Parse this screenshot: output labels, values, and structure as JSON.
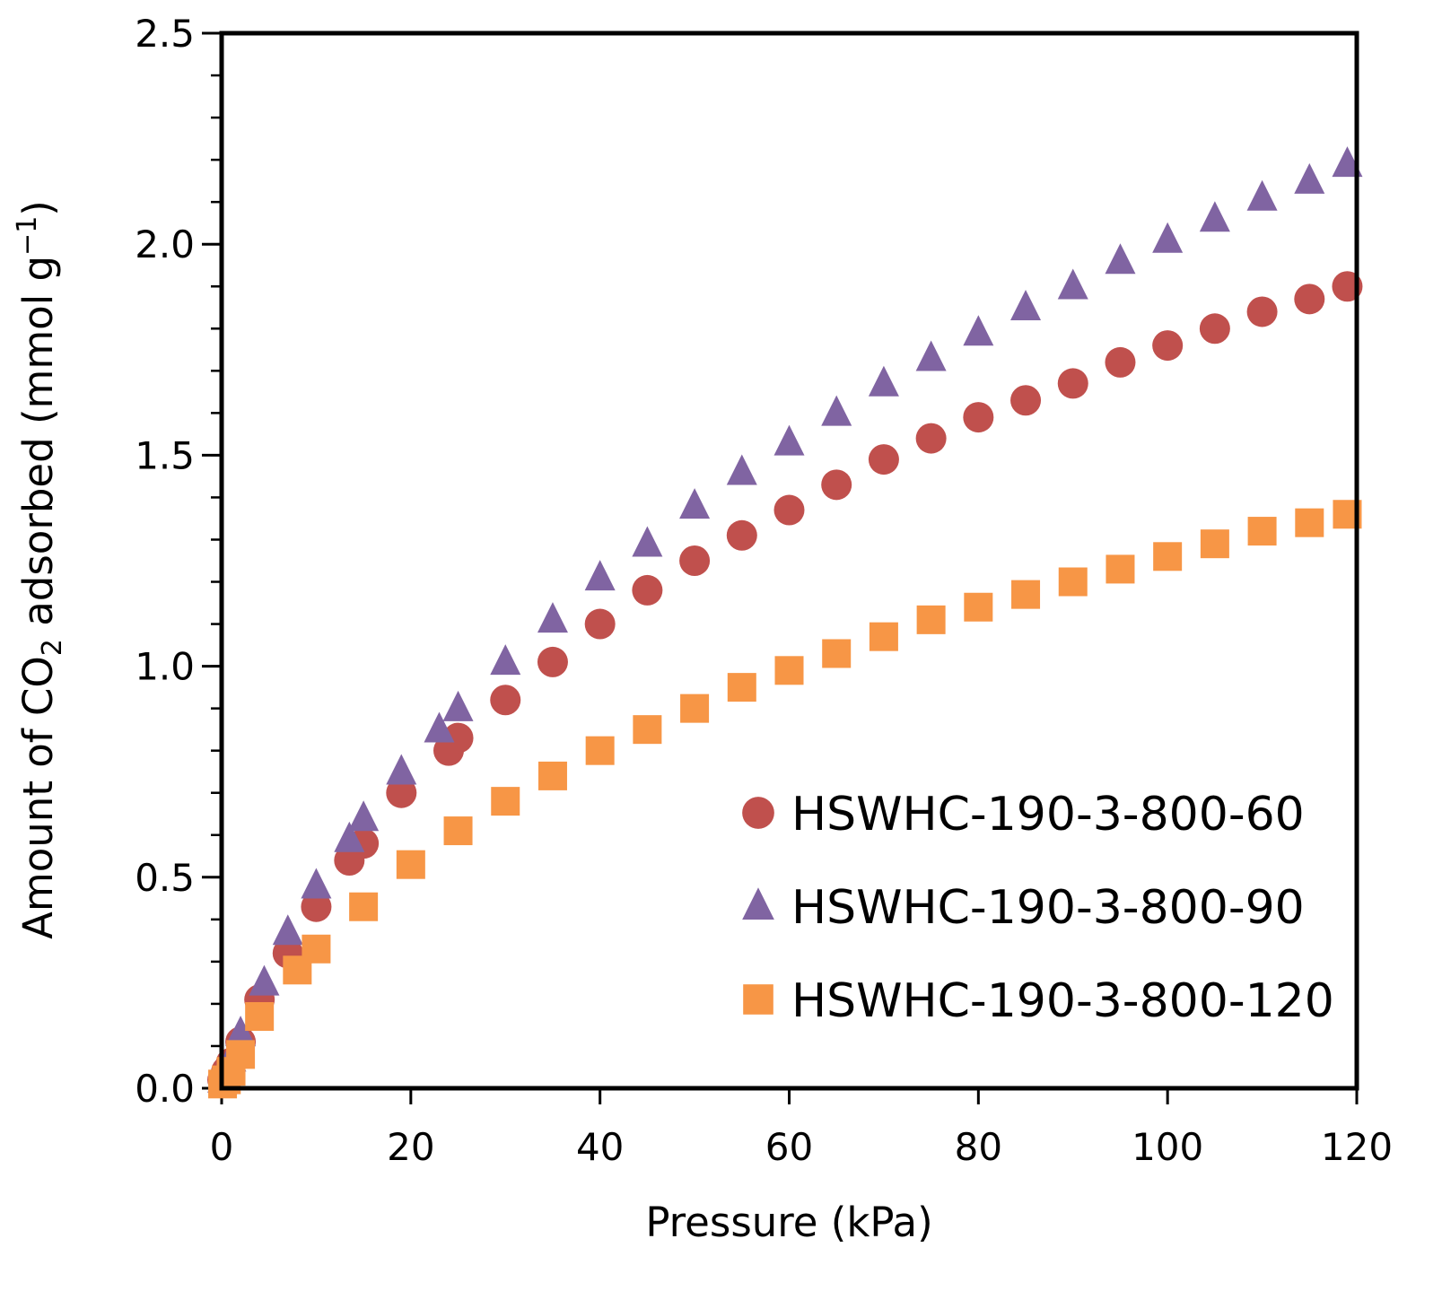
{
  "chart_data": {
    "type": "scatter",
    "xlabel": "Pressure (kPa)",
    "ylabel": {
      "before": "Amount of CO",
      "subscript": "2",
      "middle": " adsorbed (mmol g",
      "superscript": "−1",
      "after": ")"
    },
    "xlim": [
      0,
      120
    ],
    "ylim": [
      0,
      2.5
    ],
    "x_ticks": [
      0,
      20,
      40,
      60,
      80,
      100,
      120
    ],
    "x_tick_labels": [
      "0",
      "20",
      "40",
      "60",
      "80",
      "100",
      "120"
    ],
    "y_ticks": [
      0,
      0.5,
      1.0,
      1.5,
      2.0,
      2.5
    ],
    "y_tick_labels": [
      "0.0",
      "0.5",
      "1.0",
      "1.5",
      "2.0",
      "2.5"
    ],
    "y_minor_step": 0.1,
    "legend_position": "lower-right",
    "grid": false,
    "series": [
      {
        "name": "HSWHC-190-3-800-60",
        "marker": "circle",
        "color": "#C0504D",
        "points": [
          [
            0.1,
            0.02
          ],
          [
            0.5,
            0.04
          ],
          [
            1,
            0.06
          ],
          [
            2,
            0.11
          ],
          [
            4,
            0.21
          ],
          [
            7,
            0.32
          ],
          [
            10,
            0.43
          ],
          [
            13.5,
            0.54
          ],
          [
            15,
            0.58
          ],
          [
            19,
            0.7
          ],
          [
            24,
            0.8
          ],
          [
            25,
            0.83
          ],
          [
            30,
            0.92
          ],
          [
            35,
            1.01
          ],
          [
            40,
            1.1
          ],
          [
            45,
            1.18
          ],
          [
            50,
            1.25
          ],
          [
            55,
            1.31
          ],
          [
            60,
            1.37
          ],
          [
            65,
            1.43
          ],
          [
            70,
            1.49
          ],
          [
            75,
            1.54
          ],
          [
            80,
            1.59
          ],
          [
            85,
            1.63
          ],
          [
            90,
            1.67
          ],
          [
            95,
            1.72
          ],
          [
            100,
            1.76
          ],
          [
            105,
            1.8
          ],
          [
            110,
            1.84
          ],
          [
            115,
            1.87
          ],
          [
            119,
            1.9
          ]
        ]
      },
      {
        "name": "HSWHC-190-3-800-90",
        "marker": "triangle",
        "color": "#8064A2",
        "points": [
          [
            0.1,
            0.02
          ],
          [
            0.5,
            0.04
          ],
          [
            1,
            0.07
          ],
          [
            2,
            0.13
          ],
          [
            4.5,
            0.25
          ],
          [
            7,
            0.37
          ],
          [
            10,
            0.48
          ],
          [
            13.5,
            0.59
          ],
          [
            15,
            0.64
          ],
          [
            19,
            0.75
          ],
          [
            23,
            0.85
          ],
          [
            25,
            0.9
          ],
          [
            30,
            1.01
          ],
          [
            35,
            1.11
          ],
          [
            40,
            1.21
          ],
          [
            45,
            1.29
          ],
          [
            50,
            1.38
          ],
          [
            55,
            1.46
          ],
          [
            60,
            1.53
          ],
          [
            65,
            1.6
          ],
          [
            70,
            1.67
          ],
          [
            75,
            1.73
          ],
          [
            80,
            1.79
          ],
          [
            85,
            1.85
          ],
          [
            90,
            1.9
          ],
          [
            95,
            1.96
          ],
          [
            100,
            2.01
          ],
          [
            105,
            2.06
          ],
          [
            110,
            2.11
          ],
          [
            115,
            2.15
          ],
          [
            119,
            2.19
          ]
        ]
      },
      {
        "name": "HSWHC-190-3-800-120",
        "marker": "square",
        "color": "#F79646",
        "points": [
          [
            0.1,
            0.01
          ],
          [
            0.5,
            0.02
          ],
          [
            1,
            0.04
          ],
          [
            2,
            0.08
          ],
          [
            4,
            0.17
          ],
          [
            8,
            0.28
          ],
          [
            10,
            0.33
          ],
          [
            15,
            0.43
          ],
          [
            20,
            0.53
          ],
          [
            25,
            0.61
          ],
          [
            30,
            0.68
          ],
          [
            35,
            0.74
          ],
          [
            40,
            0.8
          ],
          [
            45,
            0.85
          ],
          [
            50,
            0.9
          ],
          [
            55,
            0.95
          ],
          [
            60,
            0.99
          ],
          [
            65,
            1.03
          ],
          [
            70,
            1.07
          ],
          [
            75,
            1.11
          ],
          [
            80,
            1.14
          ],
          [
            85,
            1.17
          ],
          [
            90,
            1.2
          ],
          [
            95,
            1.23
          ],
          [
            100,
            1.26
          ],
          [
            105,
            1.29
          ],
          [
            110,
            1.32
          ],
          [
            115,
            1.34
          ],
          [
            119,
            1.36
          ]
        ]
      }
    ]
  }
}
